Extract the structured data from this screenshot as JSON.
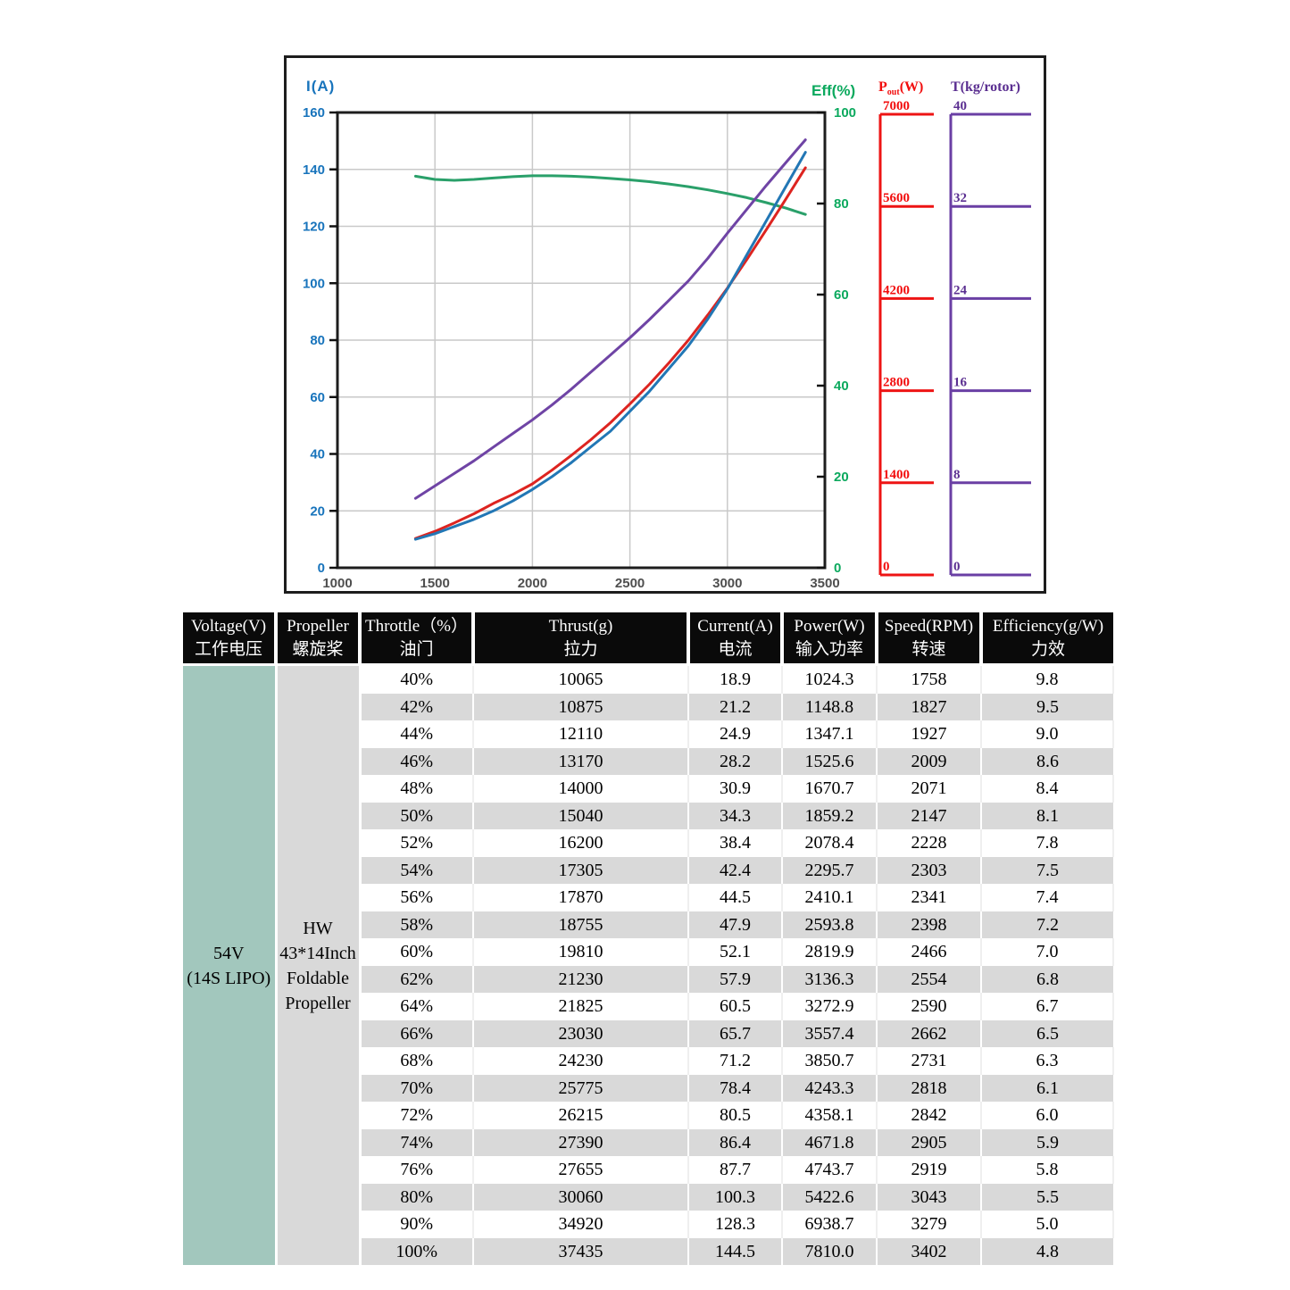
{
  "chart": {
    "x_axis": {
      "min": 1000,
      "max": 3500,
      "ticks": [
        1000,
        1500,
        2000,
        2500,
        3000,
        3500
      ],
      "tick_color": "#4f4f4f"
    },
    "axes": {
      "current": {
        "title": "I(A)",
        "label_color": "#1874bc",
        "ticks": [
          0,
          20,
          40,
          60,
          80,
          100,
          120,
          140,
          160
        ],
        "max": 160
      },
      "eff": {
        "title": "Eff(%)",
        "label_color": "#0ca95e",
        "ticks": [
          0,
          20,
          40,
          60,
          80,
          100
        ],
        "max": 100
      },
      "pout": {
        "title_p": "P",
        "title_sub": "out",
        "title_rest": "(W)",
        "label_color": "#f20d0d",
        "axis_color": "#ee1414",
        "ticks": [
          0,
          1400,
          2800,
          4200,
          5600,
          7000
        ],
        "max": 7000
      },
      "thrust": {
        "title": "T(kg/rotor)",
        "label_color": "#5b2f91",
        "axis_color": "#6a3fa4",
        "ticks": [
          0,
          8,
          16,
          24,
          32,
          40
        ],
        "max": 40
      }
    },
    "grid_color": "#c9c9c9",
    "border_color": "#1d1d1d"
  },
  "chart_data": {
    "type": "line",
    "title": "",
    "xlabel": "",
    "x_range": [
      1000,
      3500
    ],
    "grid": true,
    "x": [
      1400,
      1500,
      1600,
      1700,
      1800,
      1900,
      2000,
      2100,
      2200,
      2300,
      2400,
      2500,
      2600,
      2700,
      2800,
      2900,
      3000,
      3100,
      3200,
      3300,
      3400
    ],
    "series": [
      {
        "name": "Eff(%)",
        "axis": "eff",
        "color": "#2aa06a",
        "values": [
          86.0,
          85.3,
          85.1,
          85.3,
          85.6,
          85.9,
          86.1,
          86.1,
          86.0,
          85.8,
          85.5,
          85.2,
          84.8,
          84.3,
          83.7,
          83.0,
          82.2,
          81.3,
          80.2,
          79.0,
          77.6
        ]
      },
      {
        "name": "T(kg/rotor)",
        "axis": "thrust",
        "color": "#6f44a5",
        "values": [
          6.1,
          7.2,
          8.3,
          9.4,
          10.6,
          11.8,
          13.0,
          14.3,
          15.7,
          17.2,
          18.7,
          20.2,
          21.8,
          23.5,
          25.2,
          27.2,
          29.4,
          31.5,
          33.6,
          35.6,
          37.6
        ]
      },
      {
        "name": "Pout(W)",
        "axis": "pout",
        "color": "#dd2420",
        "values": [
          450,
          560,
          690,
          830,
          990,
          1130,
          1290,
          1500,
          1730,
          1970,
          2230,
          2520,
          2820,
          3150,
          3500,
          3890,
          4300,
          4740,
          5200,
          5670,
          6150
        ]
      },
      {
        "name": "I(A)",
        "axis": "current",
        "color": "#2277b5",
        "values": [
          10,
          12,
          14.5,
          17,
          20,
          23.5,
          27.5,
          32,
          37,
          42.5,
          48,
          55,
          62,
          70,
          78,
          87.5,
          98,
          110,
          122,
          134,
          146
        ]
      }
    ],
    "legend_position": "top-as-axis-titles"
  },
  "table": {
    "headers": [
      {
        "en": "Voltage(V)",
        "zh": "工作电压"
      },
      {
        "en": "Propeller",
        "zh": "螺旋桨"
      },
      {
        "en": "Throttle（%）",
        "zh": "油门"
      },
      {
        "en": "Thrust(g)",
        "zh": "拉力"
      },
      {
        "en": "Current(A)",
        "zh": "电流"
      },
      {
        "en": "Power(W)",
        "zh": "输入功率"
      },
      {
        "en": "Speed(RPM)",
        "zh": "转速"
      },
      {
        "en": "Efficiency(g/W)",
        "zh": "力效"
      }
    ],
    "voltage_lines": [
      "54V",
      "(14S LIPO)"
    ],
    "propeller_lines": [
      "HW",
      "43*14Inch",
      "Foldable",
      "Propeller"
    ],
    "rows": [
      [
        "40%",
        "10065",
        "18.9",
        "1024.3",
        "1758",
        "9.8"
      ],
      [
        "42%",
        "10875",
        "21.2",
        "1148.8",
        "1827",
        "9.5"
      ],
      [
        "44%",
        "12110",
        "24.9",
        "1347.1",
        "1927",
        "9.0"
      ],
      [
        "46%",
        "13170",
        "28.2",
        "1525.6",
        "2009",
        "8.6"
      ],
      [
        "48%",
        "14000",
        "30.9",
        "1670.7",
        "2071",
        "8.4"
      ],
      [
        "50%",
        "15040",
        "34.3",
        "1859.2",
        "2147",
        "8.1"
      ],
      [
        "52%",
        "16200",
        "38.4",
        "2078.4",
        "2228",
        "7.8"
      ],
      [
        "54%",
        "17305",
        "42.4",
        "2295.7",
        "2303",
        "7.5"
      ],
      [
        "56%",
        "17870",
        "44.5",
        "2410.1",
        "2341",
        "7.4"
      ],
      [
        "58%",
        "18755",
        "47.9",
        "2593.8",
        "2398",
        "7.2"
      ],
      [
        "60%",
        "19810",
        "52.1",
        "2819.9",
        "2466",
        "7.0"
      ],
      [
        "62%",
        "21230",
        "57.9",
        "3136.3",
        "2554",
        "6.8"
      ],
      [
        "64%",
        "21825",
        "60.5",
        "3272.9",
        "2590",
        "6.7"
      ],
      [
        "66%",
        "23030",
        "65.7",
        "3557.4",
        "2662",
        "6.5"
      ],
      [
        "68%",
        "24230",
        "71.2",
        "3850.7",
        "2731",
        "6.3"
      ],
      [
        "70%",
        "25775",
        "78.4",
        "4243.3",
        "2818",
        "6.1"
      ],
      [
        "72%",
        "26215",
        "80.5",
        "4358.1",
        "2842",
        "6.0"
      ],
      [
        "74%",
        "27390",
        "86.4",
        "4671.8",
        "2905",
        "5.9"
      ],
      [
        "76%",
        "27655",
        "87.7",
        "4743.7",
        "2919",
        "5.8"
      ],
      [
        "80%",
        "30060",
        "100.3",
        "5422.6",
        "3043",
        "5.5"
      ],
      [
        "90%",
        "34920",
        "128.3",
        "6938.7",
        "3279",
        "5.0"
      ],
      [
        "100%",
        "37435",
        "144.5",
        "7810.0",
        "3402",
        "4.8"
      ]
    ]
  }
}
